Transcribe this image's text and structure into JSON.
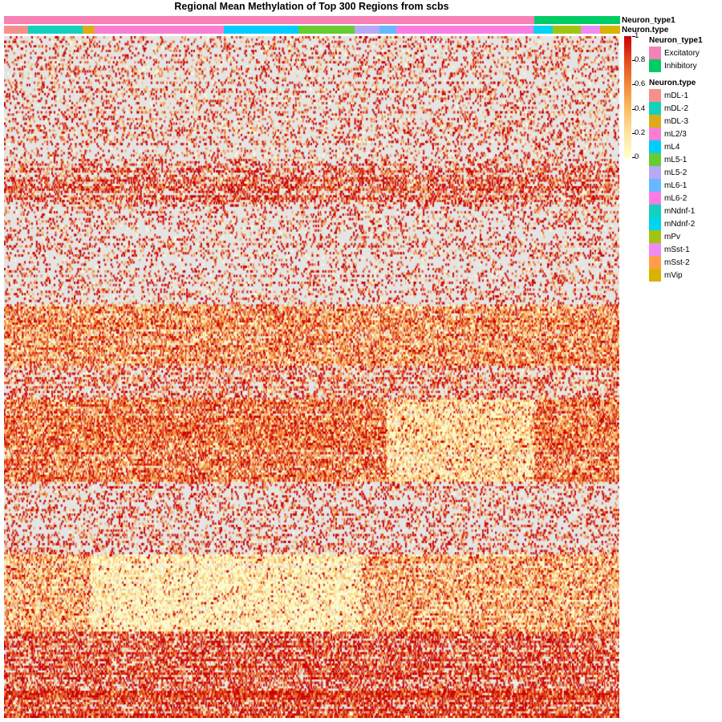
{
  "chart_data": {
    "type": "heatmap",
    "title": "Regional Mean Methylation of Top 300 Regions from scbs",
    "color_scale": {
      "min": 0,
      "max": 1,
      "low_color": "#ffffcc",
      "high_color": "#cc0000",
      "missing_color": "#e4e4e4",
      "ticks": [
        "1",
        "0.8",
        "0.6",
        "0.4",
        "0.2",
        "0"
      ]
    },
    "n_regions": 300,
    "column_annotations": [
      {
        "name": "Neuron_type1",
        "segments": [
          {
            "label": "Excitatory",
            "fraction": 0.862,
            "color": "#f780b5"
          },
          {
            "label": "Inhibitory",
            "fraction": 0.138,
            "color": "#00cc66"
          }
        ]
      },
      {
        "name": "Neuron.type",
        "segments": [
          {
            "label": "mDL-1",
            "fraction": 0.039,
            "color": "#f6908a"
          },
          {
            "label": "mDL-2",
            "fraction": 0.089,
            "color": "#13d1bd"
          },
          {
            "label": "mDL-3",
            "fraction": 0.019,
            "color": "#ddaa1b"
          },
          {
            "label": "mL2/3",
            "fraction": 0.21,
            "color": "#fa7dd4"
          },
          {
            "label": "mL4",
            "fraction": 0.121,
            "color": "#00ccff"
          },
          {
            "label": "mL5-1",
            "fraction": 0.092,
            "color": "#66cc33"
          },
          {
            "label": "mL5-2",
            "fraction": 0.04,
            "color": "#b8a8f8"
          },
          {
            "label": "mL6-1",
            "fraction": 0.027,
            "color": "#66b8ff"
          },
          {
            "label": "mL6-2",
            "fraction": 0.223,
            "color": "#fa7de5"
          },
          {
            "label": "mNdnf-2",
            "fraction": 0.032,
            "color": "#00d4ee"
          },
          {
            "label": "mPv",
            "fraction": 0.045,
            "color": "#a3c312"
          },
          {
            "label": "mSst-1",
            "fraction": 0.032,
            "color": "#ef8cf2"
          },
          {
            "label": "mVip",
            "fraction": 0.031,
            "color": "#d8b300"
          }
        ]
      }
    ],
    "legends": [
      {
        "title": "Neuron_type1",
        "entries": [
          {
            "label": "Excitatory",
            "color": "#f780b5"
          },
          {
            "label": "Inhibitory",
            "color": "#00cc66"
          }
        ]
      },
      {
        "title": "Neuron.type",
        "entries": [
          {
            "label": "mDL-1",
            "color": "#f6908a"
          },
          {
            "label": "mDL-2",
            "color": "#13d1bd"
          },
          {
            "label": "mDL-3",
            "color": "#ddaa1b"
          },
          {
            "label": "mL2/3",
            "color": "#fa7dd4"
          },
          {
            "label": "mL4",
            "color": "#00ccff"
          },
          {
            "label": "mL5-1",
            "color": "#66cc33"
          },
          {
            "label": "mL5-2",
            "color": "#b8a8f8"
          },
          {
            "label": "mL6-1",
            "color": "#66b8ff"
          },
          {
            "label": "mL6-2",
            "color": "#fa7de5"
          },
          {
            "label": "mNdnf-1",
            "color": "#13d1bd"
          },
          {
            "label": "mNdnf-2",
            "color": "#00d4ee"
          },
          {
            "label": "mPv",
            "color": "#a3c312"
          },
          {
            "label": "mSst-1",
            "color": "#ef8cf2"
          },
          {
            "label": "mSst-2",
            "color": "#ff9e4a"
          },
          {
            "label": "mVip",
            "color": "#d8b300"
          }
        ]
      }
    ],
    "row_bands": [
      {
        "rows": [
          0,
          55
        ],
        "observed": 0.22,
        "mean": 0.72
      },
      {
        "rows": [
          55,
          75
        ],
        "observed": 0.5,
        "mean": 0.78
      },
      {
        "rows": [
          75,
          118
        ],
        "observed": 0.2,
        "mean": 0.75
      },
      {
        "rows": [
          118,
          145
        ],
        "observed": 0.88,
        "mean": 0.55
      },
      {
        "rows": [
          145,
          160
        ],
        "observed": 0.4,
        "mean": 0.7
      },
      {
        "rows": [
          160,
          196
        ],
        "observed": 0.92,
        "mean": 0.62,
        "low_in": [
          0.62,
          0.86
        ],
        "low_mean": 0.3
      },
      {
        "rows": [
          196,
          228
        ],
        "observed": 0.25,
        "mean": 0.75
      },
      {
        "rows": [
          228,
          262
        ],
        "observed": 0.88,
        "mean": 0.45,
        "low_in": [
          0.14,
          0.58
        ],
        "low_mean": 0.18
      },
      {
        "rows": [
          262,
          300
        ],
        "observed": 0.75,
        "mean": 0.8
      }
    ]
  }
}
